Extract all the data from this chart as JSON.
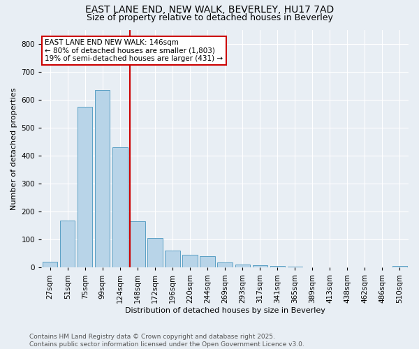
{
  "title_line1": "EAST LANE END, NEW WALK, BEVERLEY, HU17 7AD",
  "title_line2": "Size of property relative to detached houses in Beverley",
  "xlabel": "Distribution of detached houses by size in Beverley",
  "ylabel": "Number of detached properties",
  "categories": [
    "27sqm",
    "51sqm",
    "75sqm",
    "99sqm",
    "124sqm",
    "148sqm",
    "172sqm",
    "196sqm",
    "220sqm",
    "244sqm",
    "269sqm",
    "293sqm",
    "317sqm",
    "341sqm",
    "365sqm",
    "389sqm",
    "413sqm",
    "438sqm",
    "462sqm",
    "486sqm",
    "510sqm"
  ],
  "values": [
    20,
    168,
    575,
    635,
    430,
    165,
    105,
    60,
    45,
    40,
    18,
    10,
    8,
    5,
    2,
    1,
    1,
    0,
    0,
    0,
    5
  ],
  "bar_color": "#b8d4e8",
  "bar_edge_color": "#5a9fc4",
  "vertical_line_index": 5,
  "vertical_line_color": "#cc0000",
  "annotation_text": "EAST LANE END NEW WALK: 146sqm\n← 80% of detached houses are smaller (1,803)\n19% of semi-detached houses are larger (431) →",
  "annotation_box_color": "#ffffff",
  "annotation_box_edge": "#cc0000",
  "ylim": [
    0,
    850
  ],
  "yticks": [
    0,
    100,
    200,
    300,
    400,
    500,
    600,
    700,
    800
  ],
  "background_color": "#e8eef4",
  "footer_line1": "Contains HM Land Registry data © Crown copyright and database right 2025.",
  "footer_line2": "Contains public sector information licensed under the Open Government Licence v3.0.",
  "title_fontsize": 10,
  "subtitle_fontsize": 9,
  "axis_label_fontsize": 8,
  "tick_fontsize": 7.5,
  "annotation_fontsize": 7.5,
  "footer_fontsize": 6.5
}
